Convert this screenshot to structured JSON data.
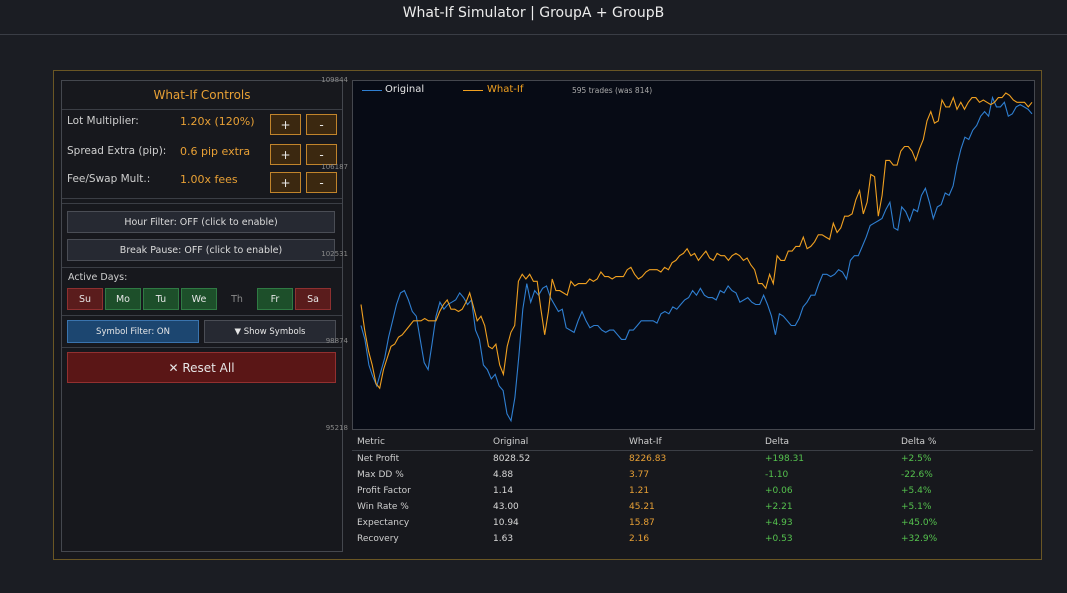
{
  "window": {
    "title": "What-If Simulator | GroupA + GroupB"
  },
  "controls": {
    "title": "What-If Controls",
    "lot": {
      "label": "Lot Multiplier:",
      "value": "1.20x (120%)",
      "plus": "+",
      "minus": "-"
    },
    "spread": {
      "label": "Spread Extra (pip):",
      "value": "0.6 pip extra",
      "plus": "+",
      "minus": "-"
    },
    "fee": {
      "label": "Fee/Swap Mult.:",
      "value": "1.00x fees",
      "plus": "+",
      "minus": "-"
    },
    "hour_filter": "Hour Filter: OFF (click to enable)",
    "break_pause": "Break Pause: OFF (click to enable)",
    "active_days_label": "Active Days:",
    "days": [
      {
        "label": "Su",
        "state": "off"
      },
      {
        "label": "Mo",
        "state": "on"
      },
      {
        "label": "Tu",
        "state": "on"
      },
      {
        "label": "We",
        "state": "on"
      },
      {
        "label": "Th",
        "state": "none"
      },
      {
        "label": "Fr",
        "state": "on"
      },
      {
        "label": "Sa",
        "state": "off"
      }
    ],
    "symbol_filter": "Symbol Filter: ON",
    "show_symbols": "▼ Show Symbols",
    "reset": "✕ Reset All"
  },
  "chart_data": {
    "type": "line",
    "y_ticks": [
      "109844",
      "106187",
      "102531",
      "98874",
      "95218"
    ],
    "ylim": [
      95218,
      109844
    ],
    "legend": [
      {
        "name": "Original",
        "color": "#2f7fd1"
      },
      {
        "name": "What-If",
        "color": "#f0a020"
      }
    ],
    "annotation": "595 trades (was 814)",
    "series": [
      {
        "name": "Original",
        "values": [
          99500,
          98900,
          97800,
          97300,
          96900,
          97500,
          98100,
          99000,
          99700,
          100400,
          100900,
          101000,
          100600,
          100100,
          99900,
          98900,
          97900,
          97600,
          98700,
          99900,
          100500,
          100200,
          100400,
          100500,
          100600,
          100900,
          100700,
          100400,
          100600,
          99300,
          98900,
          97800,
          97600,
          97200,
          97400,
          96900,
          96700,
          95700,
          95400,
          96400,
          98200,
          100200,
          101300,
          100500,
          101000,
          100800,
          101100,
          101200,
          100700,
          100400,
          100100,
          100200,
          99400,
          99300,
          99200,
          99700,
          100100,
          99700,
          99400,
          99500,
          99500,
          99300,
          99200,
          99300,
          99300,
          99100,
          98900,
          98900,
          99300,
          99300,
          99500,
          99700,
          99700,
          99700,
          99700,
          99600,
          100000,
          100100,
          100000,
          100300,
          100200,
          100400,
          100600,
          100700,
          101000,
          100800,
          101100,
          100800,
          100700,
          100700,
          100600,
          101000,
          100900,
          101200,
          101000,
          100900,
          100500,
          100600,
          100700,
          100500,
          100400,
          100400,
          100800,
          100400,
          99900,
          99100,
          100000,
          99900,
          99700,
          99500,
          99500,
          99800,
          100300,
          100500,
          100800,
          100800,
          101300,
          101700,
          101700,
          101600,
          101700,
          101900,
          101800,
          101500,
          102300,
          102500,
          102500,
          102900,
          103300,
          103800,
          103900,
          104000,
          104100,
          104500,
          104800,
          103700,
          103600,
          104600,
          104400,
          104000,
          104500,
          104400,
          105100,
          105400,
          104800,
          104100,
          104600,
          104700,
          105200,
          105100,
          105500,
          106400,
          107100,
          107600,
          107500,
          107900,
          108100,
          108500,
          108700,
          108500,
          109300,
          108900,
          108900,
          109100,
          108500,
          108600,
          108900,
          109000,
          108900,
          108800,
          108600
        ]
      },
      {
        "name": "What-If",
        "values": [
          100400,
          99300,
          98400,
          97800,
          97000,
          96800,
          97600,
          98100,
          98600,
          98700,
          99000,
          99100,
          99300,
          99500,
          99700,
          99700,
          99700,
          99800,
          99700,
          99700,
          99700,
          100100,
          100400,
          100600,
          100200,
          100200,
          100100,
          100200,
          100500,
          100900,
          100300,
          99700,
          99900,
          99500,
          98600,
          98500,
          98700,
          97800,
          97400,
          98600,
          99200,
          99500,
          101400,
          101700,
          101500,
          101700,
          101400,
          101400,
          100200,
          99100,
          100100,
          101500,
          101000,
          101000,
          100900,
          100800,
          101400,
          101200,
          101300,
          101300,
          101300,
          101500,
          101400,
          101500,
          101800,
          101600,
          101600,
          101500,
          101600,
          101600,
          101600,
          101900,
          102000,
          101700,
          101500,
          101600,
          101800,
          101900,
          101900,
          101900,
          101800,
          102000,
          101900,
          102200,
          102300,
          102500,
          102600,
          102800,
          102500,
          102600,
          102300,
          102500,
          102700,
          102400,
          102300,
          102600,
          102500,
          102500,
          102300,
          102500,
          102600,
          102500,
          102300,
          102400,
          102100,
          101900,
          101300,
          101300,
          101100,
          101700,
          101300,
          102500,
          102300,
          102300,
          102700,
          102700,
          102900,
          102900,
          103300,
          102800,
          102900,
          103100,
          103400,
          103400,
          103300,
          103200,
          103900,
          103500,
          103700,
          104200,
          104200,
          104300,
          104900,
          105300,
          104300,
          104800,
          106000,
          105900,
          104200,
          105100,
          106600,
          106600,
          106400,
          106400,
          107000,
          107200,
          107200,
          107000,
          106600,
          107100,
          107500,
          108300,
          108700,
          108200,
          108300,
          109200,
          108900,
          108900,
          109300,
          108800,
          109100,
          108800,
          109100,
          109300,
          109300,
          109100,
          109200,
          109100,
          109000,
          109100,
          109300,
          109300,
          109500,
          109400,
          109200,
          109100,
          109100,
          109100,
          108900,
          109100
        ]
      }
    ]
  },
  "metrics": {
    "headers": [
      "Metric",
      "Original",
      "What-If",
      "Delta",
      "Delta %"
    ],
    "rows": [
      [
        "Net Profit",
        "8028.52",
        "8226.83",
        "+198.31",
        "+2.5%"
      ],
      [
        "Max DD %",
        "4.88",
        "3.77",
        "-1.10",
        "-22.6%"
      ],
      [
        "Profit Factor",
        "1.14",
        "1.21",
        "+0.06",
        "+5.4%"
      ],
      [
        "Win Rate %",
        "43.00",
        "45.21",
        "+2.21",
        "+5.1%"
      ],
      [
        "Expectancy",
        "10.94",
        "15.87",
        "+4.93",
        "+45.0%"
      ],
      [
        "Recovery",
        "1.63",
        "2.16",
        "+0.53",
        "+32.9%"
      ]
    ]
  }
}
